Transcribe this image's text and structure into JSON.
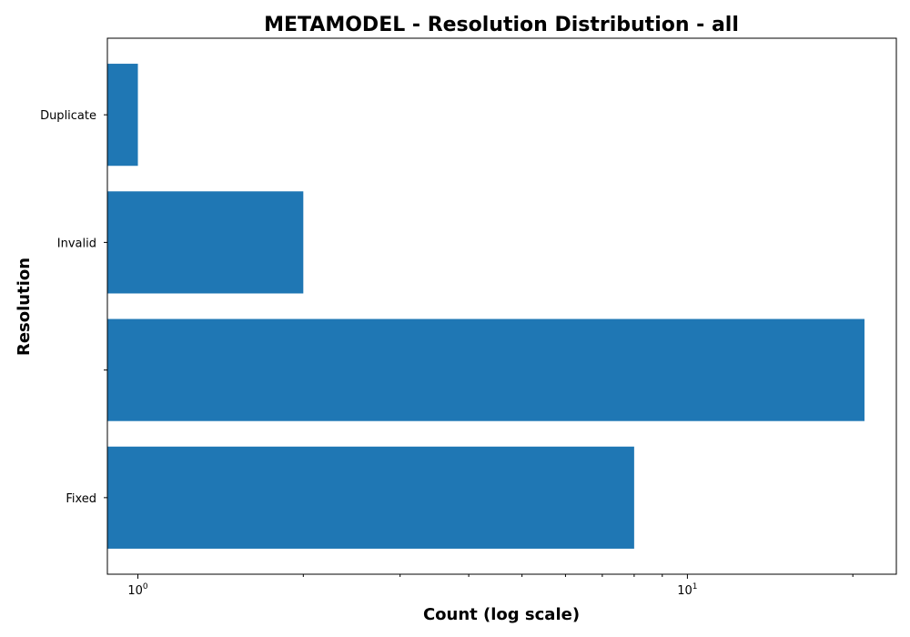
{
  "chart_data": {
    "type": "bar",
    "orientation": "horizontal",
    "title": "METAMODEL - Resolution Distribution - all",
    "xlabel": "Count (log scale)",
    "ylabel": "Resolution",
    "x_scale": "log",
    "xlim": [
      0.88,
      24
    ],
    "categories": [
      "Fixed",
      "",
      "Invalid",
      "Duplicate"
    ],
    "values": [
      8,
      21,
      2,
      1
    ],
    "x_ticks": [
      {
        "value": 1,
        "base": "10",
        "exp": "0"
      },
      {
        "value": 10,
        "base": "10",
        "exp": "1"
      }
    ],
    "bar_color": "#1f77b4",
    "grid": false,
    "legend": "none"
  }
}
